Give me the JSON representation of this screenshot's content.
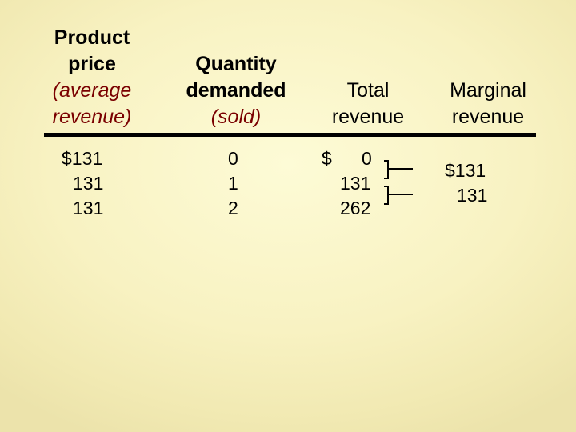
{
  "columns": {
    "price": {
      "header_line1": "Product",
      "header_line2": "price",
      "header_line3": "(average",
      "header_line4": "revenue)",
      "values": [
        "$131",
        "131",
        "131"
      ]
    },
    "quantity": {
      "header_line1": "Quantity",
      "header_line2": "demanded",
      "header_line3": "(sold)",
      "values": [
        "0",
        "1",
        "2"
      ]
    },
    "total": {
      "header_line1": "Total",
      "header_line2": "revenue",
      "currency": "$",
      "values": [
        "0",
        "131",
        "262"
      ]
    },
    "marginal": {
      "header_line1": "Marginal",
      "header_line2": "revenue",
      "values": [
        "$131",
        "131"
      ]
    }
  },
  "colors": {
    "background": "#f8f2c2",
    "italic_text": "#7a0000",
    "text": "#000000"
  }
}
